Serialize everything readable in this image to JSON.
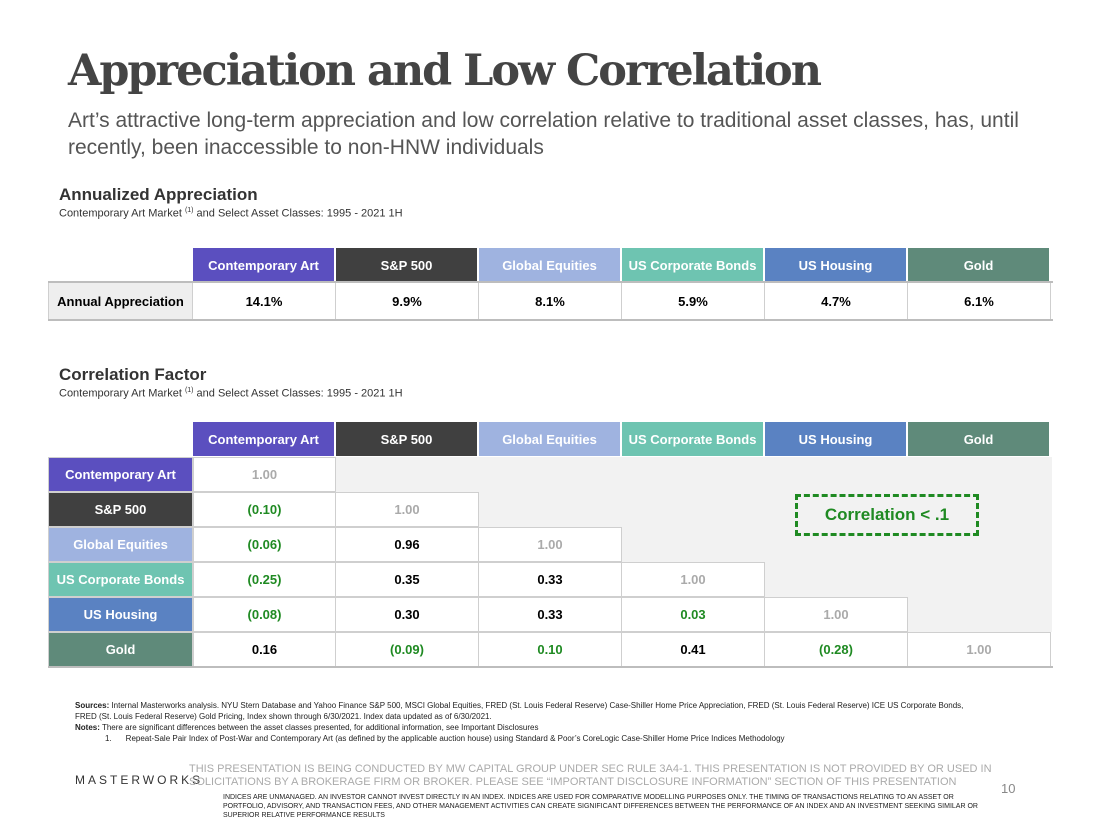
{
  "title": "Appreciation and Low Correlation",
  "subtitle": "Art’s attractive long-term appreciation and low correlation relative to traditional asset classes, has, until recently, been inaccessible to non-HNW individuals",
  "colors": {
    "contemporary_art": "#5b4fbf",
    "sp500": "#404040",
    "global_equities": "#9fb3e0",
    "us_corporate_bonds": "#6ec4b1",
    "us_housing": "#5a82c2",
    "gold": "#5f8a7a",
    "positive_text": "#1f8a22"
  },
  "appreciation": {
    "heading": "Annualized Appreciation",
    "sub_prefix": "Contemporary Art Market ",
    "sub_sup": "(1)",
    "sub_suffix": " and Select Asset Classes: 1995 - 2021 1H",
    "columns": [
      "Contemporary Art",
      "S&P 500",
      "Global Equities",
      "US Corporate Bonds",
      "US Housing",
      "Gold"
    ],
    "row_label": "Annual Appreciation",
    "values": [
      "14.1%",
      "9.9%",
      "8.1%",
      "5.9%",
      "4.7%",
      "6.1%"
    ]
  },
  "correlation": {
    "heading": "Correlation Factor",
    "sub_prefix": "Contemporary Art Market ",
    "sub_sup": "(1)",
    "sub_suffix": " and Select Asset Classes: 1995 - 2021 1H",
    "columns": [
      "Contemporary Art",
      "S&P 500",
      "Global Equities",
      "US Corporate Bonds",
      "US Housing",
      "Gold"
    ],
    "rows": [
      {
        "label": "Contemporary Art",
        "values": [
          "1.00"
        ]
      },
      {
        "label": "S&P 500",
        "values": [
          "(0.10)",
          "1.00"
        ]
      },
      {
        "label": "Global Equities",
        "values": [
          "(0.06)",
          "0.96",
          "1.00"
        ]
      },
      {
        "label": "US Corporate Bonds",
        "values": [
          "(0.25)",
          "0.35",
          "0.33",
          "1.00"
        ]
      },
      {
        "label": "US Housing",
        "values": [
          "(0.08)",
          "0.30",
          "0.33",
          "0.03",
          "1.00"
        ]
      },
      {
        "label": "Gold",
        "values": [
          "0.16",
          "(0.09)",
          "0.10",
          "0.41",
          "(0.28)",
          "1.00"
        ]
      }
    ],
    "callout": "Correlation < .1"
  },
  "footnotes": {
    "sources_label": "Sources:",
    "sources_text": " Internal Masterworks analysis. NYU Stern Database and Yahoo Finance S&P 500, MSCI Global Equities, FRED (St. Louis Federal Reserve) Case-Shiller Home Price Appreciation, FRED (St. Louis Federal Reserve) ICE US Corporate Bonds, FRED (St. Louis Federal Reserve) Gold Pricing, Index shown through 6/30/2021. Index data updated as of 6/30/2021.",
    "notes_label": "Notes:",
    "notes_text": " There are significant differences between the asset classes presented, for additional information, see Important Disclosures",
    "note1_num": "1.",
    "note1_text": "Repeat-Sale Pair Index of Post-War and Contemporary Art (as defined by the applicable auction house) using Standard & Poor’s CoreLogic Case-Shiller Home Price Indices Methodology"
  },
  "footer": {
    "brand": "MASTERWORKS",
    "disclaimer": "THIS PRESENTATION  IS BEING CONDUCTED BY MW CAPITAL GROUP UNDER SEC RULE 3A4-1. THIS PRESENTATION  IS NOT PROVIDED BY OR USED IN SOLICITATIONS BY A BROKERAGE FIRM OR BROKER. PLEASE SEE “IMPORTANT DISCLOSURE INFORMATION” SECTION OF THIS PRESENTATION",
    "disclaimer2": "INDICES ARE UNMANAGED. AN INVESTOR CANNOT INVEST DIRECTLY IN AN INDEX. INDICES ARE USED FOR COMPARATIVE MODELLING PURPOSES ONLY. THE TIMING OF TRANSACTIONS RELATING TO AN ASSET OR PORTFOLIO, ADVISORY, AND TRANSACTION FEES, AND OTHER MANAGEMENT ACTIVITIES CAN CREATE SIGNIFICANT DIFFERENCES BETWEEN THE PERFORMANCE OF AN INDEX AND AN INVESTMENT SEEKING SIMILAR OR SUPERIOR RELATIVE PERFORMANCE RESULTS",
    "page_number": "10"
  }
}
